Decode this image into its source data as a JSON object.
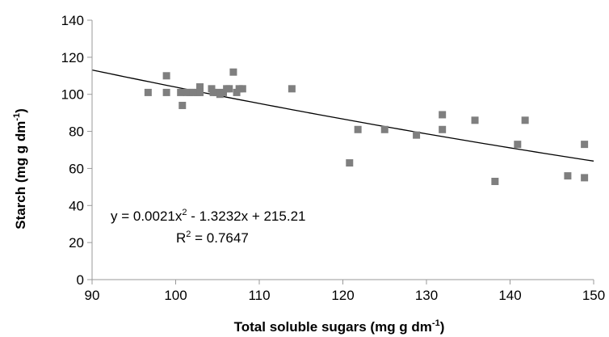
{
  "chart_data": {
    "type": "scatter",
    "title": "",
    "xlabel": "Total soluble sugars (mg g dm",
    "xlabel_sup": "-1",
    "xlabel_tail": ")",
    "ylabel": "Starch (mg g dm",
    "ylabel_sup": "-1",
    "ylabel_tail": ")",
    "xlim": [
      90,
      150
    ],
    "ylim": [
      0,
      140
    ],
    "xticks": [
      90,
      100,
      110,
      120,
      130,
      140,
      150
    ],
    "yticks": [
      0,
      20,
      40,
      60,
      80,
      100,
      120,
      140
    ],
    "grid": false,
    "legend": "none",
    "colors": {
      "marker": "#7f7f7f",
      "trendline": "#000000",
      "axis": "#999999"
    },
    "series": [
      {
        "marker": "square",
        "x": [
          96.7,
          98.9,
          98.9,
          100.6,
          100.8,
          101.3,
          101.7,
          102.1,
          102.6,
          102.9,
          102.9,
          104.3,
          104.5,
          104.9,
          105.3,
          105.7,
          106.1,
          106.4,
          106.9,
          107.3,
          107.6,
          108.0,
          113.9,
          120.8,
          121.8,
          125.0,
          128.8,
          131.9,
          131.9,
          135.8,
          138.2,
          140.9,
          141.8,
          146.9,
          148.9,
          148.9
        ],
        "y": [
          101,
          110,
          101,
          101,
          94,
          101,
          101,
          101,
          101,
          104,
          101,
          103,
          101,
          101,
          100,
          101,
          103,
          103,
          112,
          101,
          103,
          103,
          103,
          63,
          81,
          81,
          78,
          89,
          81,
          86,
          53,
          73,
          86,
          56,
          55,
          73
        ]
      }
    ],
    "trendline": {
      "type": "polynomial",
      "coefficients": [
        0.0021,
        -1.3232,
        215.21
      ],
      "x_range": [
        90,
        150
      ]
    },
    "annotations": {
      "equation": {
        "prefix": "y = 0.0021x",
        "sup": "2",
        "suffix": " - 1.3232x + 215.21"
      },
      "r_squared": {
        "prefix": "R",
        "sup": "2",
        "suffix": " = 0.7647"
      }
    }
  }
}
